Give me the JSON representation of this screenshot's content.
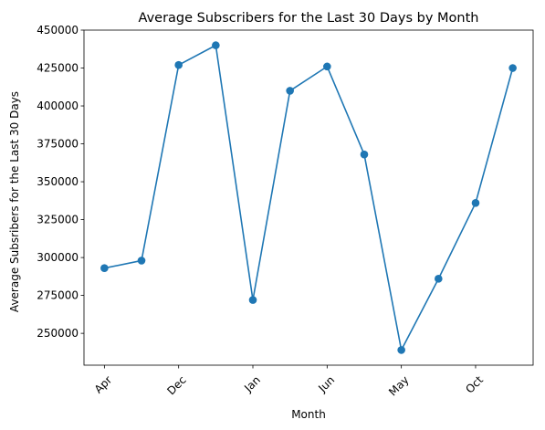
{
  "chart_data": {
    "type": "line",
    "title": "Average Subscribers for the Last 30 Days by Month",
    "xlabel": "Month",
    "ylabel": "Average Subsribers for the Last 30 Days",
    "x_tick_labels": [
      "Apr",
      "Dec",
      "Jan",
      "Jun",
      "May",
      "Oct"
    ],
    "x_tick_positions": [
      0,
      2,
      4,
      6,
      8,
      10
    ],
    "x": [
      0,
      1,
      2,
      3,
      4,
      5,
      6,
      7,
      8,
      9,
      10,
      11
    ],
    "values": [
      293000,
      298000,
      427000,
      440000,
      272000,
      410000,
      426000,
      368000,
      239000,
      286000,
      336000,
      425000
    ],
    "xlim": [
      -0.55,
      11.55
    ],
    "ylim": [
      229000,
      450000
    ],
    "y_ticks": [
      250000,
      275000,
      300000,
      325000,
      350000,
      375000,
      400000,
      425000,
      450000
    ],
    "color": "#1f77b4",
    "marker": "circle",
    "grid": false
  }
}
